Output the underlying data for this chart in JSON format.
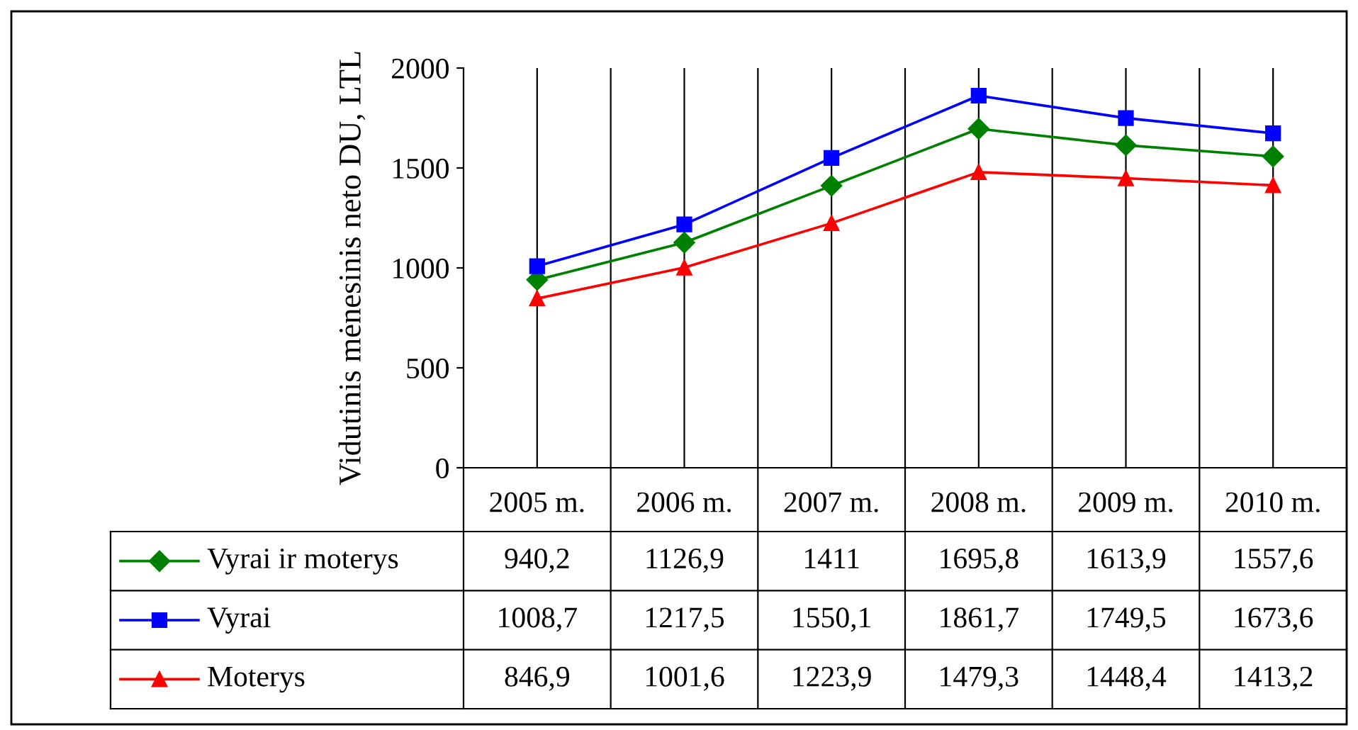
{
  "chart_data": {
    "type": "line",
    "ylabel": "Vidutinis mėnesinis neto DU, LTL",
    "categories": [
      "2005 m.",
      "2006 m.",
      "2007 m.",
      "2008 m.",
      "2009 m.",
      "2010 m."
    ],
    "series": [
      {
        "name": "Vyrai ir moterys",
        "color": "#008000",
        "marker": "diamond",
        "values": [
          940.2,
          1126.9,
          1411,
          1695.8,
          1613.9,
          1557.6
        ],
        "value_labels": [
          "940,2",
          "1126,9",
          "1411",
          "1695,8",
          "1613,9",
          "1557,6"
        ]
      },
      {
        "name": "Vyrai",
        "color": "#0000ff",
        "marker": "square",
        "values": [
          1008.7,
          1217.5,
          1550.1,
          1861.7,
          1749.5,
          1673.6
        ],
        "value_labels": [
          "1008,7",
          "1217,5",
          "1550,1",
          "1861,7",
          "1749,5",
          "1673,6"
        ]
      },
      {
        "name": "Moterys",
        "color": "#ff0000",
        "marker": "triangle",
        "values": [
          846.9,
          1001.6,
          1223.9,
          1479.3,
          1448.4,
          1413.2
        ],
        "value_labels": [
          "846,9",
          "1001,6",
          "1223,9",
          "1479,3",
          "1448,4",
          "1413,2"
        ]
      }
    ],
    "ylim": [
      0,
      2000
    ],
    "yticks": [
      0,
      500,
      1000,
      1500,
      2000
    ],
    "grid": "x",
    "legend": "bottom left",
    "line_style": "solid"
  }
}
